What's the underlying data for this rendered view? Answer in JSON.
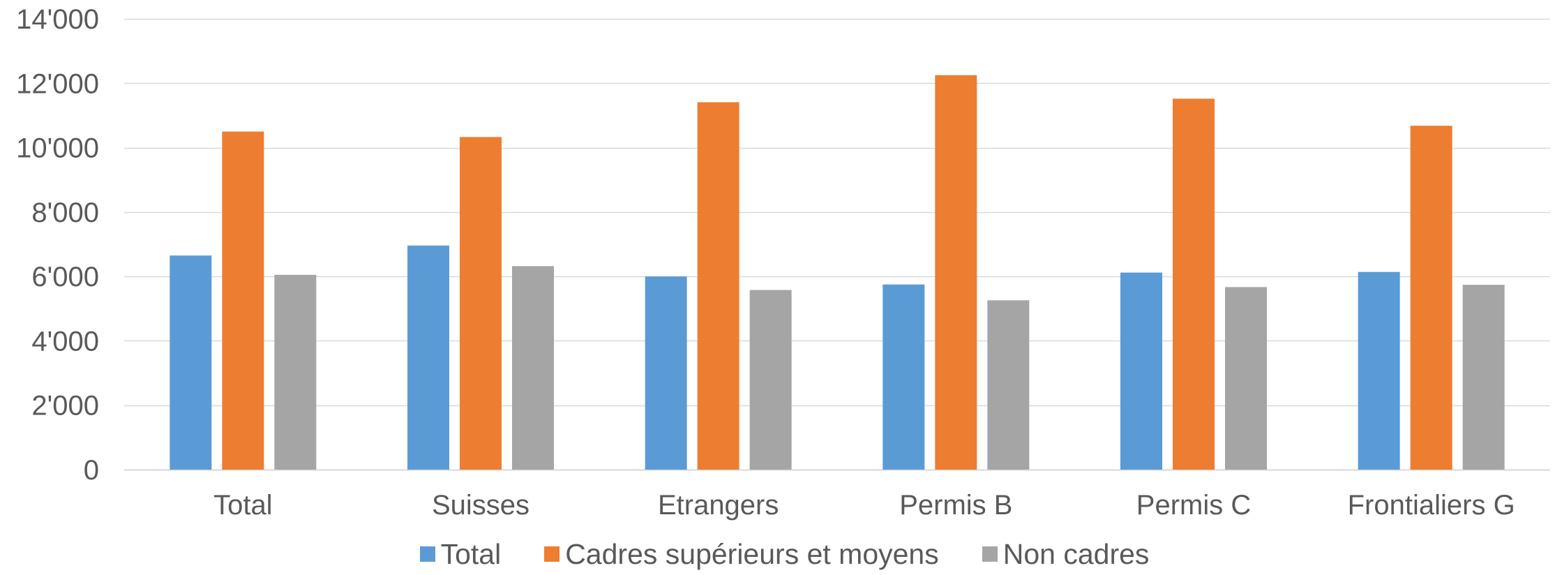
{
  "chart_data": {
    "type": "bar",
    "categories": [
      "Total",
      "Suisses",
      "Etrangers",
      "Permis B",
      "Permis C",
      "Frontialiers G"
    ],
    "series": [
      {
        "name": "Total",
        "color": "#5B9BD5",
        "values": [
          6650,
          6960,
          6000,
          5750,
          6120,
          6140
        ]
      },
      {
        "name": "Cadres supérieurs et moyens",
        "color": "#ED7D31",
        "values": [
          10500,
          10330,
          11410,
          12250,
          11520,
          10680
        ]
      },
      {
        "name": "Non cadres",
        "color": "#A5A5A5",
        "values": [
          6050,
          6320,
          5580,
          5260,
          5670,
          5740
        ]
      }
    ],
    "title": "",
    "xlabel": "",
    "ylabel": "",
    "ylim": [
      0,
      14000
    ],
    "yticks": [
      0,
      2000,
      4000,
      6000,
      8000,
      10000,
      12000,
      14000
    ],
    "ytick_labels": [
      "0",
      "2'000",
      "4'000",
      "6'000",
      "8'000",
      "10'000",
      "12'000",
      "14'000"
    ],
    "grid": true,
    "gridline_color": "#D9D9D9",
    "legend_position": "bottom"
  }
}
